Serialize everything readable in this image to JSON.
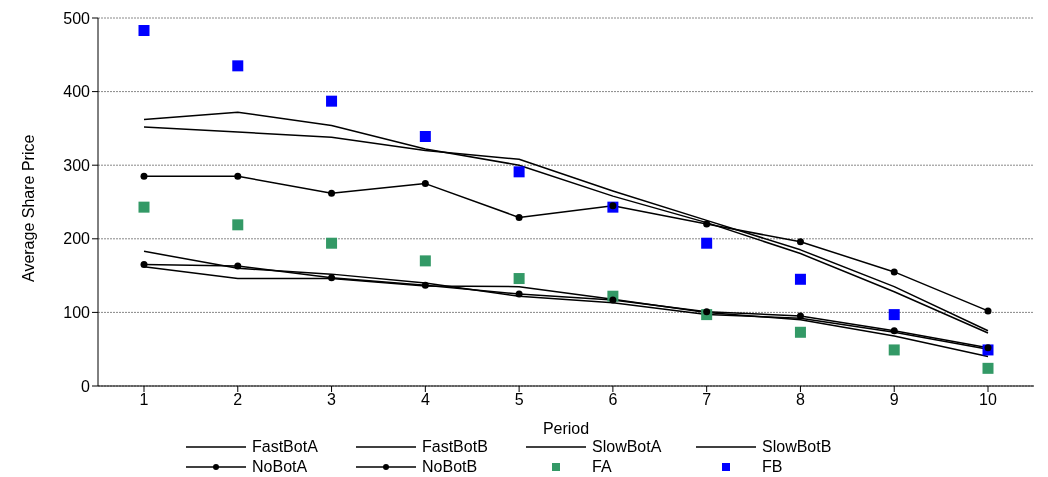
{
  "chart_data": {
    "type": "line",
    "xlabel": "Period",
    "ylabel": "Average Share Price",
    "categories": [
      "1",
      "2",
      "3",
      "4",
      "5",
      "6",
      "7",
      "8",
      "9",
      "10"
    ],
    "ylim": [
      0,
      500
    ],
    "yticks": [
      0,
      100,
      200,
      300,
      400,
      500
    ],
    "grid": "y",
    "legend": "bottom",
    "marker": "none",
    "series": [
      {
        "name": "FastBotA",
        "color": "#000000",
        "values": [
          352,
          345,
          338,
          320,
          308,
          265,
          225,
          185,
          135,
          75
        ]
      },
      {
        "name": "FastBotB",
        "color": "#000000",
        "values": [
          162,
          146,
          146,
          136,
          135,
          118,
          100,
          90,
          68,
          40
        ]
      },
      {
        "name": "SlowBotA",
        "color": "#000000",
        "values": [
          362,
          372,
          354,
          322,
          300,
          258,
          222,
          180,
          128,
          72
        ]
      },
      {
        "name": "SlowBotB",
        "color": "#000000",
        "values": [
          183,
          160,
          152,
          140,
          122,
          113,
          97,
          92,
          73,
          50
        ]
      },
      {
        "name": "NoBotA",
        "color": "#000000",
        "marker": "circle",
        "values": [
          285,
          285,
          262,
          275,
          229,
          245,
          220,
          196,
          155,
          102
        ]
      },
      {
        "name": "NoBotB",
        "color": "#000000",
        "marker": "circle",
        "values": [
          165,
          163,
          147,
          137,
          125,
          117,
          101,
          95,
          75,
          52
        ]
      },
      {
        "name": "FA",
        "type": "scatter",
        "color": "#339966",
        "marker": "square",
        "values": [
          243,
          219,
          194,
          170,
          146,
          122,
          97,
          73,
          49,
          24
        ]
      },
      {
        "name": "FB",
        "type": "scatter",
        "color": "#0000ff",
        "marker": "square",
        "values": [
          483,
          435,
          387,
          339,
          291,
          243,
          194,
          145,
          97,
          49
        ]
      }
    ]
  }
}
